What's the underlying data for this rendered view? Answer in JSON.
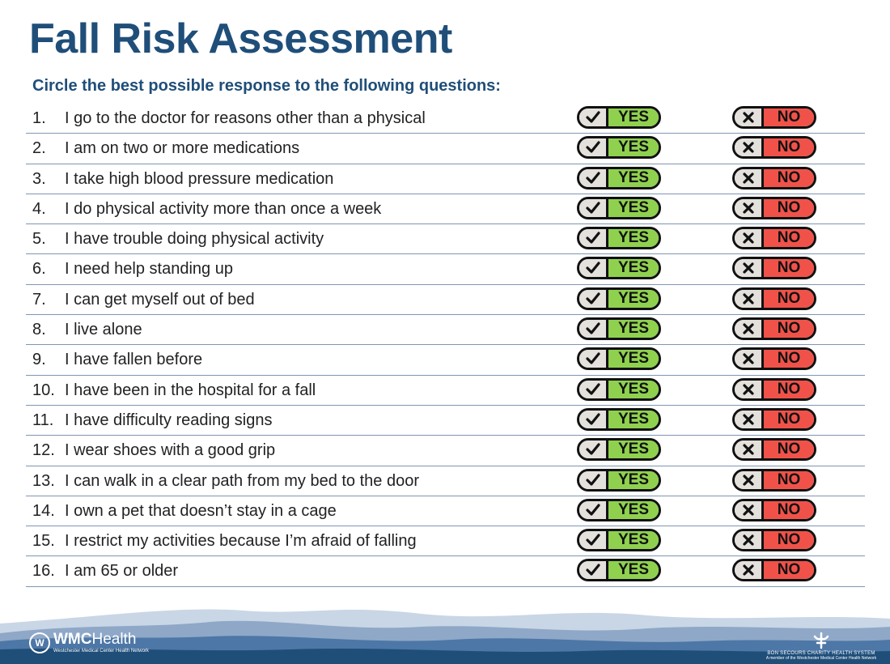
{
  "title": "Fall Risk Assessment",
  "subtitle": "Circle the best possible response to the following questions:",
  "yes_label": "YES",
  "no_label": "NO",
  "questions": [
    {
      "num": "1.",
      "text": "I go to the doctor for reasons other than a physical"
    },
    {
      "num": "2.",
      "text": "I am on two or more medications"
    },
    {
      "num": "3.",
      "text": "I take high blood pressure medication"
    },
    {
      "num": "4.",
      "text": "I do physical activity more than once a week"
    },
    {
      "num": "5.",
      "text": "I have trouble doing physical activity"
    },
    {
      "num": "6.",
      "text": "I need help standing up"
    },
    {
      "num": "7.",
      "text": "I can get myself out of bed"
    },
    {
      "num": "8.",
      "text": "I live alone"
    },
    {
      "num": "9.",
      "text": "I have fallen before"
    },
    {
      "num": "10.",
      "text": "I have been in the hospital for a fall"
    },
    {
      "num": "11.",
      "text": "I have difficulty reading signs"
    },
    {
      "num": "12.",
      "text": "I wear shoes with a good grip"
    },
    {
      "num": "13.",
      "text": "I can walk in a clear path from my bed to the door"
    },
    {
      "num": "14.",
      "text": "I own a pet that doesn’t stay in a cage"
    },
    {
      "num": "15.",
      "text": "I restrict my activities because I’m afraid of falling"
    },
    {
      "num": "16.",
      "text": "I am 65 or older"
    }
  ],
  "footer": {
    "left_logo": {
      "bold": "WMC",
      "light": "Health",
      "tagline": "Westchester Medical Center Health Network"
    },
    "right_logo": {
      "line1": "BON SECOURS CHARITY HEALTH SYSTEM",
      "line2": "A member of the Westchester Medical Center Health Network"
    }
  },
  "colors": {
    "title": "#1f4e79",
    "yes": "#8fd14f",
    "no": "#f0524a",
    "icon_bg": "#e4e1dd",
    "mountains": [
      "#c9d6e6",
      "#8fa8c8",
      "#4d77a6",
      "#1f4e79"
    ]
  },
  "icons": {
    "yes": "check-icon",
    "no": "x-icon"
  }
}
